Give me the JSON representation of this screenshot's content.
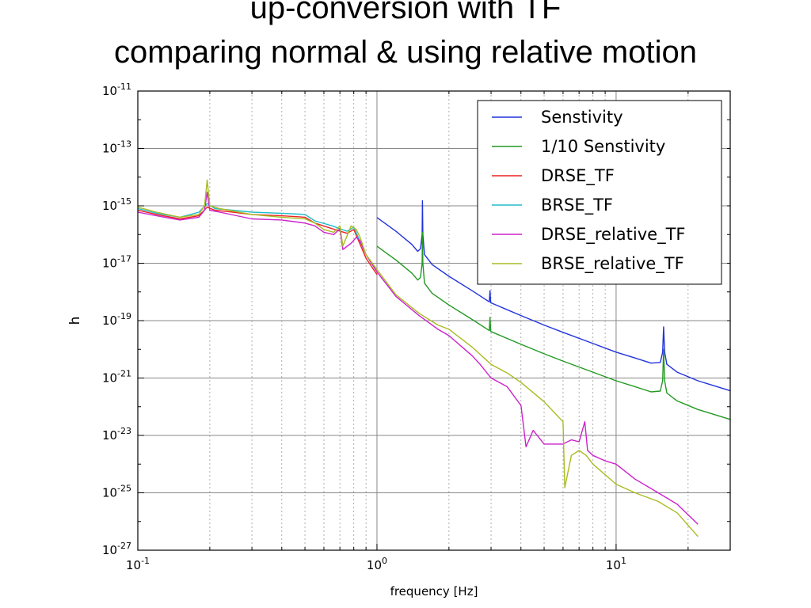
{
  "slide": {
    "title_line_1": "up-conversion with TF",
    "title_line_2": "comparing normal & using relative motion"
  },
  "chart_data": {
    "type": "line",
    "title": "",
    "xlabel": "frequency [Hz]",
    "ylabel": "h",
    "xscale": "log",
    "yscale": "log",
    "xlim": [
      0.1,
      30
    ],
    "ylim": [
      1e-27,
      1e-11
    ],
    "grid": true,
    "legend_position": "top-right",
    "x_ticks": [
      {
        "value": 0.1,
        "base": "10",
        "exp": "-1"
      },
      {
        "value": 1,
        "base": "10",
        "exp": "0"
      },
      {
        "value": 10,
        "base": "10",
        "exp": "1"
      }
    ],
    "y_ticks": [
      {
        "value": 1e-11,
        "base": "10",
        "exp": "-11"
      },
      {
        "value": 1e-13,
        "base": "10",
        "exp": "-13"
      },
      {
        "value": 1e-15,
        "base": "10",
        "exp": "-15"
      },
      {
        "value": 1e-17,
        "base": "10",
        "exp": "-17"
      },
      {
        "value": 1e-19,
        "base": "10",
        "exp": "-19"
      },
      {
        "value": 1e-21,
        "base": "10",
        "exp": "-21"
      },
      {
        "value": 1e-23,
        "base": "10",
        "exp": "-23"
      },
      {
        "value": 1e-25,
        "base": "10",
        "exp": "-25"
      },
      {
        "value": 1e-27,
        "base": "10",
        "exp": "-27"
      }
    ],
    "series": [
      {
        "name": "Senstivity",
        "color": "#2233dd",
        "points": [
          [
            1.0,
            3.9e-16
          ],
          [
            1.2,
            1.3e-16
          ],
          [
            1.4,
            4.5e-17
          ],
          [
            1.48,
            2.6e-17
          ],
          [
            1.52,
            3.2e-17
          ],
          [
            1.545,
            1e-16
          ],
          [
            1.55,
            1.5e-15
          ],
          [
            1.556,
            1e-16
          ],
          [
            1.58,
            2e-17
          ],
          [
            1.7,
            9e-18
          ],
          [
            2.0,
            3.5e-18
          ],
          [
            2.5,
            1.1e-18
          ],
          [
            2.95,
            4.5e-19
          ],
          [
            2.97,
            1.1e-18
          ],
          [
            2.99,
            4.2e-19
          ],
          [
            3.1,
            3.7e-19
          ],
          [
            4.0,
            1.5e-19
          ],
          [
            5.0,
            7e-20
          ],
          [
            6.0,
            3.9e-20
          ],
          [
            8.0,
            1.6e-20
          ],
          [
            10.0,
            8e-21
          ],
          [
            12.0,
            5e-21
          ],
          [
            14.0,
            3.3e-21
          ],
          [
            15.3,
            3.5e-21
          ],
          [
            15.65,
            8e-21
          ],
          [
            15.8,
            6e-20
          ],
          [
            15.95,
            8e-21
          ],
          [
            16.3,
            3e-21
          ],
          [
            18.0,
            1.6e-21
          ],
          [
            22.0,
            8e-22
          ],
          [
            30.0,
            3.6e-22
          ]
        ]
      },
      {
        "name": "1/10 Senstivity",
        "color": "#229922",
        "points": [
          [
            1.0,
            3.9e-17
          ],
          [
            1.2,
            1.3e-17
          ],
          [
            1.4,
            4.5e-18
          ],
          [
            1.48,
            2.6e-18
          ],
          [
            1.52,
            3.2e-18
          ],
          [
            1.545,
            1e-17
          ],
          [
            1.55,
            1.2e-16
          ],
          [
            1.556,
            1e-17
          ],
          [
            1.58,
            2e-18
          ],
          [
            1.7,
            9e-19
          ],
          [
            2.0,
            3.5e-19
          ],
          [
            2.5,
            1.1e-19
          ],
          [
            2.95,
            4.5e-20
          ],
          [
            2.97,
            1.3e-19
          ],
          [
            2.99,
            4.2e-20
          ],
          [
            3.1,
            3.7e-20
          ],
          [
            4.0,
            1.5e-20
          ],
          [
            5.0,
            7e-21
          ],
          [
            6.0,
            3.9e-21
          ],
          [
            8.0,
            1.6e-21
          ],
          [
            10.0,
            8e-22
          ],
          [
            12.0,
            5e-22
          ],
          [
            14.0,
            3.3e-22
          ],
          [
            15.3,
            3.5e-22
          ],
          [
            15.65,
            8e-22
          ],
          [
            15.8,
            1e-20
          ],
          [
            15.95,
            8e-22
          ],
          [
            16.3,
            3e-22
          ],
          [
            18.0,
            1.6e-22
          ],
          [
            22.0,
            8e-23
          ],
          [
            30.0,
            3.6e-23
          ]
        ]
      },
      {
        "name": "DRSE_TF",
        "color": "#ee2222",
        "points": [
          [
            0.1,
            7e-16
          ],
          [
            0.12,
            5e-16
          ],
          [
            0.15,
            3.5e-16
          ],
          [
            0.18,
            4.5e-16
          ],
          [
            0.195,
            9e-16
          ],
          [
            0.21,
            7e-16
          ],
          [
            0.25,
            6e-16
          ],
          [
            0.3,
            5e-16
          ],
          [
            0.4,
            4.5e-16
          ],
          [
            0.5,
            4e-16
          ],
          [
            0.55,
            2.5e-16
          ],
          [
            0.65,
            1.6e-16
          ],
          [
            0.75,
            1.1e-16
          ],
          [
            0.8,
            1.5e-16
          ],
          [
            0.9,
            1.5e-17
          ],
          [
            1.0,
            4e-18
          ]
        ]
      },
      {
        "name": "BRSE_TF",
        "color": "#22bbcc",
        "points": [
          [
            0.1,
            8e-16
          ],
          [
            0.12,
            5.5e-16
          ],
          [
            0.15,
            4e-16
          ],
          [
            0.18,
            6e-16
          ],
          [
            0.195,
            1.2e-15
          ],
          [
            0.21,
            8e-16
          ],
          [
            0.25,
            7e-16
          ],
          [
            0.3,
            6e-16
          ],
          [
            0.4,
            5.5e-16
          ],
          [
            0.5,
            5e-16
          ],
          [
            0.55,
            3e-16
          ],
          [
            0.65,
            2e-16
          ],
          [
            0.75,
            1.3e-16
          ],
          [
            0.8,
            1.8e-16
          ],
          [
            0.9,
            2e-17
          ],
          [
            1.0,
            5e-18
          ]
        ]
      },
      {
        "name": "DRSE_relative_TF",
        "color": "#cc22cc",
        "points": [
          [
            0.1,
            6e-16
          ],
          [
            0.12,
            4.5e-16
          ],
          [
            0.15,
            3.2e-16
          ],
          [
            0.18,
            4e-16
          ],
          [
            0.19,
            7e-16
          ],
          [
            0.195,
            3e-15
          ],
          [
            0.2,
            7e-16
          ],
          [
            0.22,
            6e-16
          ],
          [
            0.3,
            3.5e-16
          ],
          [
            0.4,
            3.2e-16
          ],
          [
            0.5,
            2.5e-16
          ],
          [
            0.55,
            2e-16
          ],
          [
            0.6,
            1.2e-16
          ],
          [
            0.66,
            1e-16
          ],
          [
            0.7,
            1.6e-16
          ],
          [
            0.72,
            3e-17
          ],
          [
            0.78,
            5e-17
          ],
          [
            0.82,
            8e-17
          ],
          [
            0.85,
            6e-17
          ],
          [
            0.9,
            2e-17
          ],
          [
            1.0,
            5e-18
          ],
          [
            1.2,
            7e-19
          ],
          [
            1.5,
            1.5e-19
          ],
          [
            1.8,
            5e-20
          ],
          [
            2.0,
            3e-20
          ],
          [
            2.5,
            6e-21
          ],
          [
            2.7,
            3e-21
          ],
          [
            3.0,
            1e-21
          ],
          [
            3.5,
            5e-22
          ],
          [
            4.0,
            1.1e-22
          ],
          [
            4.2,
            4e-24
          ],
          [
            4.5,
            1.5e-23
          ],
          [
            5.0,
            5e-24
          ],
          [
            6.0,
            5e-24
          ],
          [
            6.5,
            7e-24
          ],
          [
            7.0,
            6e-24
          ],
          [
            7.4,
            3e-23
          ],
          [
            7.6,
            3e-24
          ],
          [
            8.0,
            2e-24
          ],
          [
            9.0,
            1.3e-24
          ],
          [
            10.0,
            1e-24
          ],
          [
            12.0,
            3e-25
          ],
          [
            15.0,
            1e-25
          ],
          [
            18.0,
            4e-26
          ],
          [
            22.0,
            8e-27
          ]
        ]
      },
      {
        "name": "BRSE_relative_TF",
        "color": "#aabb22",
        "points": [
          [
            0.1,
            9e-16
          ],
          [
            0.12,
            6e-16
          ],
          [
            0.15,
            4e-16
          ],
          [
            0.18,
            5e-16
          ],
          [
            0.19,
            1e-15
          ],
          [
            0.195,
            8e-15
          ],
          [
            0.2,
            1e-15
          ],
          [
            0.22,
            8e-16
          ],
          [
            0.3,
            5e-16
          ],
          [
            0.4,
            4e-16
          ],
          [
            0.5,
            3.5e-16
          ],
          [
            0.55,
            2.5e-16
          ],
          [
            0.6,
            1.5e-16
          ],
          [
            0.66,
            1.2e-16
          ],
          [
            0.7,
            2e-16
          ],
          [
            0.72,
            4e-17
          ],
          [
            0.78,
            2e-16
          ],
          [
            0.82,
            1.5e-16
          ],
          [
            0.85,
            8e-17
          ],
          [
            0.9,
            2e-17
          ],
          [
            1.0,
            6e-18
          ],
          [
            1.2,
            8e-19
          ],
          [
            1.5,
            1.8e-19
          ],
          [
            1.8,
            7e-20
          ],
          [
            2.0,
            5e-20
          ],
          [
            2.5,
            1.2e-20
          ],
          [
            3.0,
            3e-21
          ],
          [
            3.5,
            1.5e-21
          ],
          [
            4.0,
            7e-22
          ],
          [
            5.0,
            1.5e-22
          ],
          [
            6.0,
            3e-23
          ],
          [
            6.1,
            1.5e-25
          ],
          [
            6.5,
            2e-24
          ],
          [
            7.0,
            3e-24
          ],
          [
            7.5,
            2e-24
          ],
          [
            8.0,
            1e-24
          ],
          [
            10.0,
            2e-25
          ],
          [
            12.0,
            1e-25
          ],
          [
            15.0,
            5e-26
          ],
          [
            18.0,
            2e-26
          ],
          [
            22.0,
            3e-27
          ]
        ]
      }
    ]
  }
}
